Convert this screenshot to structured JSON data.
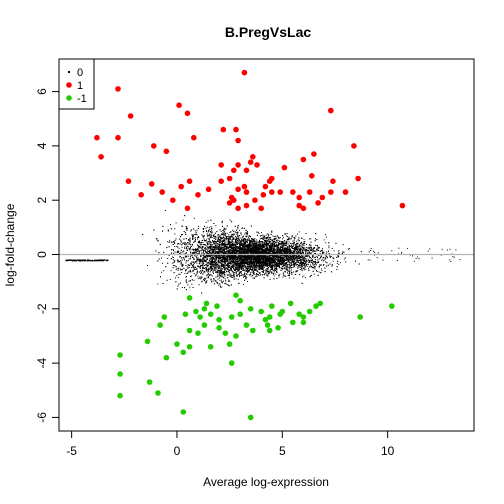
{
  "chart_data": {
    "type": "scatter",
    "title": "B.PregVsLac",
    "xlabel": "Average log-expression",
    "ylabel": "log-fold-change",
    "xlim": [
      -5.6,
      14.1
    ],
    "ylim": [
      -6.5,
      7.2
    ],
    "x_ticks": [
      -5,
      0,
      5,
      10
    ],
    "y_ticks": [
      -6,
      -4,
      -2,
      0,
      2,
      4,
      6
    ],
    "reference_line_y": 0,
    "legend_position": "top-left",
    "legend": [
      {
        "label": "0",
        "color": "#000000",
        "symbol": "dot"
      },
      {
        "label": "1",
        "color": "#ff0000",
        "symbol": "circle"
      },
      {
        "label": "-1",
        "color": "#22cc00",
        "symbol": "circle"
      }
    ],
    "series": [
      {
        "name": "0",
        "color": "#000000",
        "kind": "background-cloud",
        "x_range": [
          -5.2,
          13.8
        ],
        "y_range": [
          -3.2,
          3.4
        ],
        "description_points": "dense cloud of non-significant genes"
      },
      {
        "name": "1",
        "color": "#ff0000",
        "points": [
          [
            3.2,
            6.7
          ],
          [
            -2.8,
            6.1
          ],
          [
            0.1,
            5.5
          ],
          [
            7.3,
            5.3
          ],
          [
            0.5,
            5.2
          ],
          [
            -2.2,
            5.1
          ],
          [
            2.2,
            4.6
          ],
          [
            2.8,
            4.6
          ],
          [
            -3.8,
            4.3
          ],
          [
            -2.8,
            4.3
          ],
          [
            0.8,
            4.3
          ],
          [
            2.9,
            4.2
          ],
          [
            -1.1,
            4.0
          ],
          [
            8.4,
            4.0
          ],
          [
            -0.5,
            3.8
          ],
          [
            6.5,
            3.7
          ],
          [
            -3.6,
            3.6
          ],
          [
            3.6,
            3.6
          ],
          [
            6.0,
            3.5
          ],
          [
            3.5,
            3.4
          ],
          [
            2.1,
            3.3
          ],
          [
            2.9,
            3.3
          ],
          [
            3.8,
            3.3
          ],
          [
            2.7,
            3.1
          ],
          [
            3.3,
            3.1
          ],
          [
            5.1,
            3.2
          ],
          [
            6.4,
            2.9
          ],
          [
            2.5,
            2.8
          ],
          [
            4.5,
            2.8
          ],
          [
            8.6,
            2.8
          ],
          [
            -2.3,
            2.7
          ],
          [
            -1.2,
            2.6
          ],
          [
            0.6,
            2.7
          ],
          [
            2.1,
            2.7
          ],
          [
            4.4,
            2.7
          ],
          [
            7.4,
            2.7
          ],
          [
            0.2,
            2.5
          ],
          [
            3.2,
            2.5
          ],
          [
            4.2,
            2.5
          ],
          [
            1.5,
            2.4
          ],
          [
            2.9,
            2.4
          ],
          [
            -0.7,
            2.3
          ],
          [
            3.3,
            2.3
          ],
          [
            4.1,
            2.2
          ],
          [
            4.5,
            2.3
          ],
          [
            4.9,
            2.3
          ],
          [
            5.5,
            2.3
          ],
          [
            6.3,
            2.3
          ],
          [
            7.3,
            2.3
          ],
          [
            8.0,
            2.3
          ],
          [
            -1.7,
            2.2
          ],
          [
            1.0,
            2.2
          ],
          [
            2.6,
            2.1
          ],
          [
            5.8,
            2.1
          ],
          [
            6.9,
            2.1
          ],
          [
            -0.2,
            2.0
          ],
          [
            2.7,
            2.0
          ],
          [
            3.7,
            2.0
          ],
          [
            6.7,
            1.9
          ],
          [
            2.5,
            1.9
          ],
          [
            3.3,
            1.8
          ],
          [
            5.8,
            1.8
          ],
          [
            10.7,
            1.8
          ],
          [
            0.5,
            1.7
          ],
          [
            2.9,
            1.7
          ],
          [
            4.0,
            1.7
          ],
          [
            6.0,
            1.7
          ]
        ]
      },
      {
        "name": "-1",
        "color": "#22cc00",
        "points": [
          [
            2.8,
            -1.5
          ],
          [
            0.6,
            -1.6
          ],
          [
            3.0,
            -1.7
          ],
          [
            1.4,
            -1.8
          ],
          [
            5.4,
            -1.8
          ],
          [
            6.8,
            -1.8
          ],
          [
            1.9,
            -1.9
          ],
          [
            4.5,
            -1.9
          ],
          [
            6.6,
            -1.9
          ],
          [
            10.2,
            -1.9
          ],
          [
            1.3,
            -2.0
          ],
          [
            3.5,
            -2.0
          ],
          [
            0.9,
            -2.1
          ],
          [
            4.0,
            -2.1
          ],
          [
            5.0,
            -2.1
          ],
          [
            6.3,
            -2.1
          ],
          [
            0.4,
            -2.2
          ],
          [
            1.6,
            -2.2
          ],
          [
            3.0,
            -2.2
          ],
          [
            4.9,
            -2.2
          ],
          [
            5.8,
            -2.2
          ],
          [
            -0.6,
            -2.3
          ],
          [
            1.1,
            -2.3
          ],
          [
            2.6,
            -2.3
          ],
          [
            4.4,
            -2.3
          ],
          [
            6.0,
            -2.3
          ],
          [
            8.7,
            -2.3
          ],
          [
            2.0,
            -2.4
          ],
          [
            4.2,
            -2.4
          ],
          [
            5.5,
            -2.5
          ],
          [
            6.0,
            -2.5
          ],
          [
            -0.8,
            -2.6
          ],
          [
            1.3,
            -2.6
          ],
          [
            3.3,
            -2.6
          ],
          [
            4.3,
            -2.6
          ],
          [
            2.0,
            -2.7
          ],
          [
            4.8,
            -2.7
          ],
          [
            0.6,
            -2.8
          ],
          [
            3.6,
            -2.8
          ],
          [
            4.4,
            -2.8
          ],
          [
            1.0,
            -2.9
          ],
          [
            2.3,
            -2.9
          ],
          [
            2.8,
            -3.0
          ],
          [
            -1.4,
            -3.2
          ],
          [
            0.0,
            -3.3
          ],
          [
            2.5,
            -3.3
          ],
          [
            0.6,
            -3.4
          ],
          [
            1.6,
            -3.4
          ],
          [
            0.3,
            -3.6
          ],
          [
            -2.7,
            -3.7
          ],
          [
            -0.5,
            -3.8
          ],
          [
            2.6,
            -4.0
          ],
          [
            -2.7,
            -4.4
          ],
          [
            -1.3,
            -4.7
          ],
          [
            -0.9,
            -5.1
          ],
          [
            -2.7,
            -5.2
          ],
          [
            0.3,
            -5.8
          ],
          [
            3.5,
            -6.0
          ]
        ]
      }
    ]
  }
}
